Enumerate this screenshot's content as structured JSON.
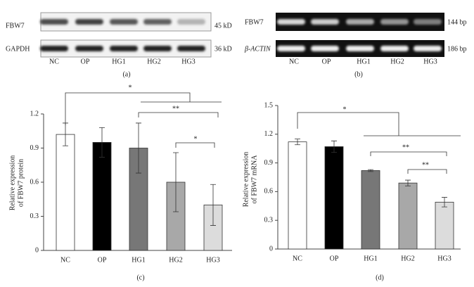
{
  "blots": [
    {
      "caption": "(a)",
      "rows": [
        {
          "label": "FBW7",
          "size": "45 kD"
        },
        {
          "label": "GAPDH",
          "size": "36 kD"
        }
      ],
      "lanes": [
        "NC",
        "OP",
        "HG1",
        "HG2",
        "HG3"
      ]
    },
    {
      "caption": "(b)",
      "rows": [
        {
          "label": "FBW7",
          "size": "144 bp"
        },
        {
          "label": "β-ACTIN",
          "size": "186 bp"
        }
      ],
      "lanes": [
        "NC",
        "OP",
        "HG1",
        "HG2",
        "HG3"
      ]
    }
  ],
  "chart_data": [
    {
      "type": "bar",
      "caption": "(c)",
      "ylabel": [
        "Relative expression",
        "of FBW7 protein"
      ],
      "categories": [
        "NC",
        "OP",
        "HG1",
        "HG2",
        "HG3"
      ],
      "values": [
        1.02,
        0.95,
        0.9,
        0.6,
        0.4
      ],
      "errors": [
        0.1,
        0.13,
        0.22,
        0.26,
        0.18
      ],
      "colors": [
        "#ffffff",
        "#000000",
        "#777777",
        "#a8a8a8",
        "#dcdcdc"
      ],
      "ylim": [
        0,
        1.2
      ],
      "yticks": [
        0,
        0.3,
        0.6,
        0.9,
        1.2
      ],
      "annotations": [
        "*",
        "**",
        "*"
      ]
    },
    {
      "type": "bar",
      "caption": "(d)",
      "ylabel": [
        "Relative expression",
        "of FBW7 mRNA"
      ],
      "categories": [
        "NC",
        "OP",
        "HG1",
        "HG2",
        "HG3"
      ],
      "values": [
        1.12,
        1.07,
        0.82,
        0.69,
        0.49
      ],
      "errors": [
        0.03,
        0.06,
        0.01,
        0.03,
        0.05
      ],
      "colors": [
        "#ffffff",
        "#000000",
        "#777777",
        "#a8a8a8",
        "#dcdcdc"
      ],
      "ylim": [
        0,
        1.5
      ],
      "yticks": [
        0,
        0.3,
        0.6,
        0.9,
        1.2,
        1.5
      ],
      "annotations": [
        "*",
        "**",
        "**"
      ]
    }
  ]
}
